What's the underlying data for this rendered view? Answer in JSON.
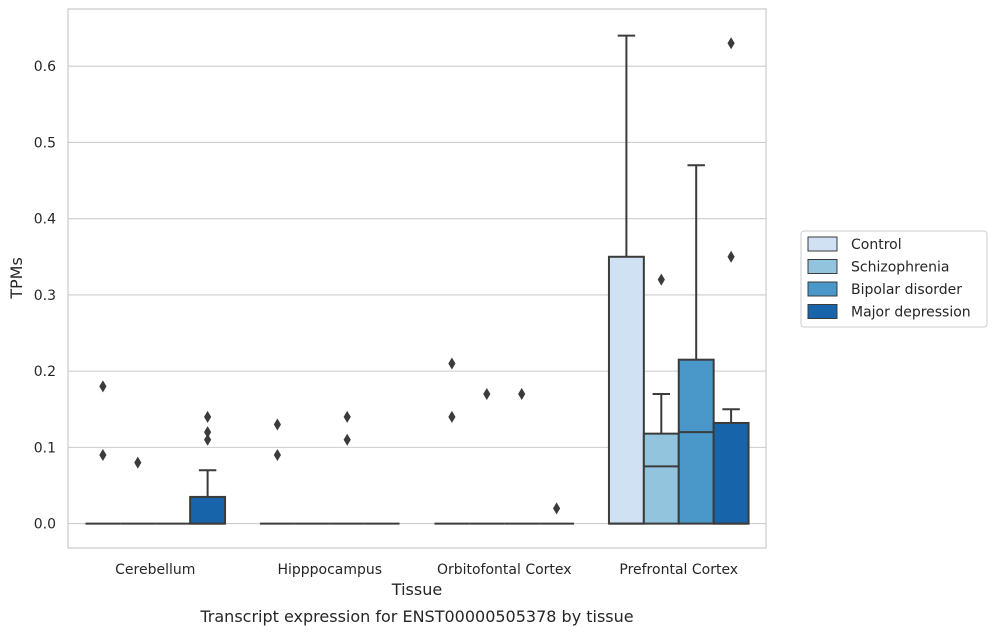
{
  "chart_data": {
    "type": "box",
    "title": "Transcript expression for ENST00000505378 by tissue",
    "xlabel": "Tissue",
    "ylabel": "TPMs",
    "ylim": [
      -0.032,
      0.675
    ],
    "yticks": [
      0.0,
      0.1,
      0.2,
      0.3,
      0.4,
      0.5,
      0.6
    ],
    "ytick_labels": [
      "0.0",
      "0.1",
      "0.2",
      "0.3",
      "0.4",
      "0.5",
      "0.6"
    ],
    "categories": [
      "Cerebellum",
      "Hipppocampus",
      "Orbitofontal Cortex",
      "Prefrontal Cortex"
    ],
    "grid": "horizontal",
    "legend_position": "right",
    "series": [
      {
        "name": "Control",
        "color": "#cfe1f2",
        "boxes": [
          {
            "q1": 0,
            "median": 0,
            "q3": 0,
            "whisker_low": 0,
            "whisker_high": 0,
            "outliers": [
              0.18,
              0.09
            ]
          },
          {
            "q1": 0,
            "median": 0,
            "q3": 0,
            "whisker_low": 0,
            "whisker_high": 0,
            "outliers": [
              0.13,
              0.09
            ]
          },
          {
            "q1": 0,
            "median": 0,
            "q3": 0,
            "whisker_low": 0,
            "whisker_high": 0,
            "outliers": [
              0.21,
              0.14
            ]
          },
          {
            "q1": 0,
            "median": 0,
            "q3": 0.35,
            "whisker_low": 0,
            "whisker_high": 0.64,
            "outliers": []
          }
        ]
      },
      {
        "name": "Schizophrenia",
        "color": "#93c4de",
        "boxes": [
          {
            "q1": 0,
            "median": 0,
            "q3": 0,
            "whisker_low": 0,
            "whisker_high": 0,
            "outliers": [
              0.08
            ]
          },
          {
            "q1": 0,
            "median": 0,
            "q3": 0,
            "whisker_low": 0,
            "whisker_high": 0,
            "outliers": []
          },
          {
            "q1": 0,
            "median": 0,
            "q3": 0,
            "whisker_low": 0,
            "whisker_high": 0,
            "outliers": [
              0.17
            ]
          },
          {
            "q1": 0,
            "median": 0.075,
            "q3": 0.118,
            "whisker_low": 0,
            "whisker_high": 0.17,
            "outliers": [
              0.32
            ]
          }
        ]
      },
      {
        "name": "Bipolar disorder",
        "color": "#4a98c9",
        "boxes": [
          {
            "q1": 0,
            "median": 0,
            "q3": 0,
            "whisker_low": 0,
            "whisker_high": 0,
            "outliers": []
          },
          {
            "q1": 0,
            "median": 0,
            "q3": 0,
            "whisker_low": 0,
            "whisker_high": 0,
            "outliers": [
              0.14,
              0.11
            ]
          },
          {
            "q1": 0,
            "median": 0,
            "q3": 0,
            "whisker_low": 0,
            "whisker_high": 0,
            "outliers": [
              0.17
            ]
          },
          {
            "q1": 0,
            "median": 0.12,
            "q3": 0.215,
            "whisker_low": 0,
            "whisker_high": 0.47,
            "outliers": []
          }
        ]
      },
      {
        "name": "Major depression",
        "color": "#1764ab",
        "boxes": [
          {
            "q1": 0,
            "median": 0,
            "q3": 0.035,
            "whisker_low": 0,
            "whisker_high": 0.07,
            "outliers": [
              0.14,
              0.12,
              0.11
            ]
          },
          {
            "q1": 0,
            "median": 0,
            "q3": 0,
            "whisker_low": 0,
            "whisker_high": 0,
            "outliers": []
          },
          {
            "q1": 0,
            "median": 0,
            "q3": 0,
            "whisker_low": 0,
            "whisker_high": 0,
            "outliers": [
              0.02
            ]
          },
          {
            "q1": 0,
            "median": 0,
            "q3": 0.132,
            "whisker_low": 0,
            "whisker_high": 0.15,
            "outliers": [
              0.63,
              0.35
            ]
          }
        ]
      }
    ]
  }
}
